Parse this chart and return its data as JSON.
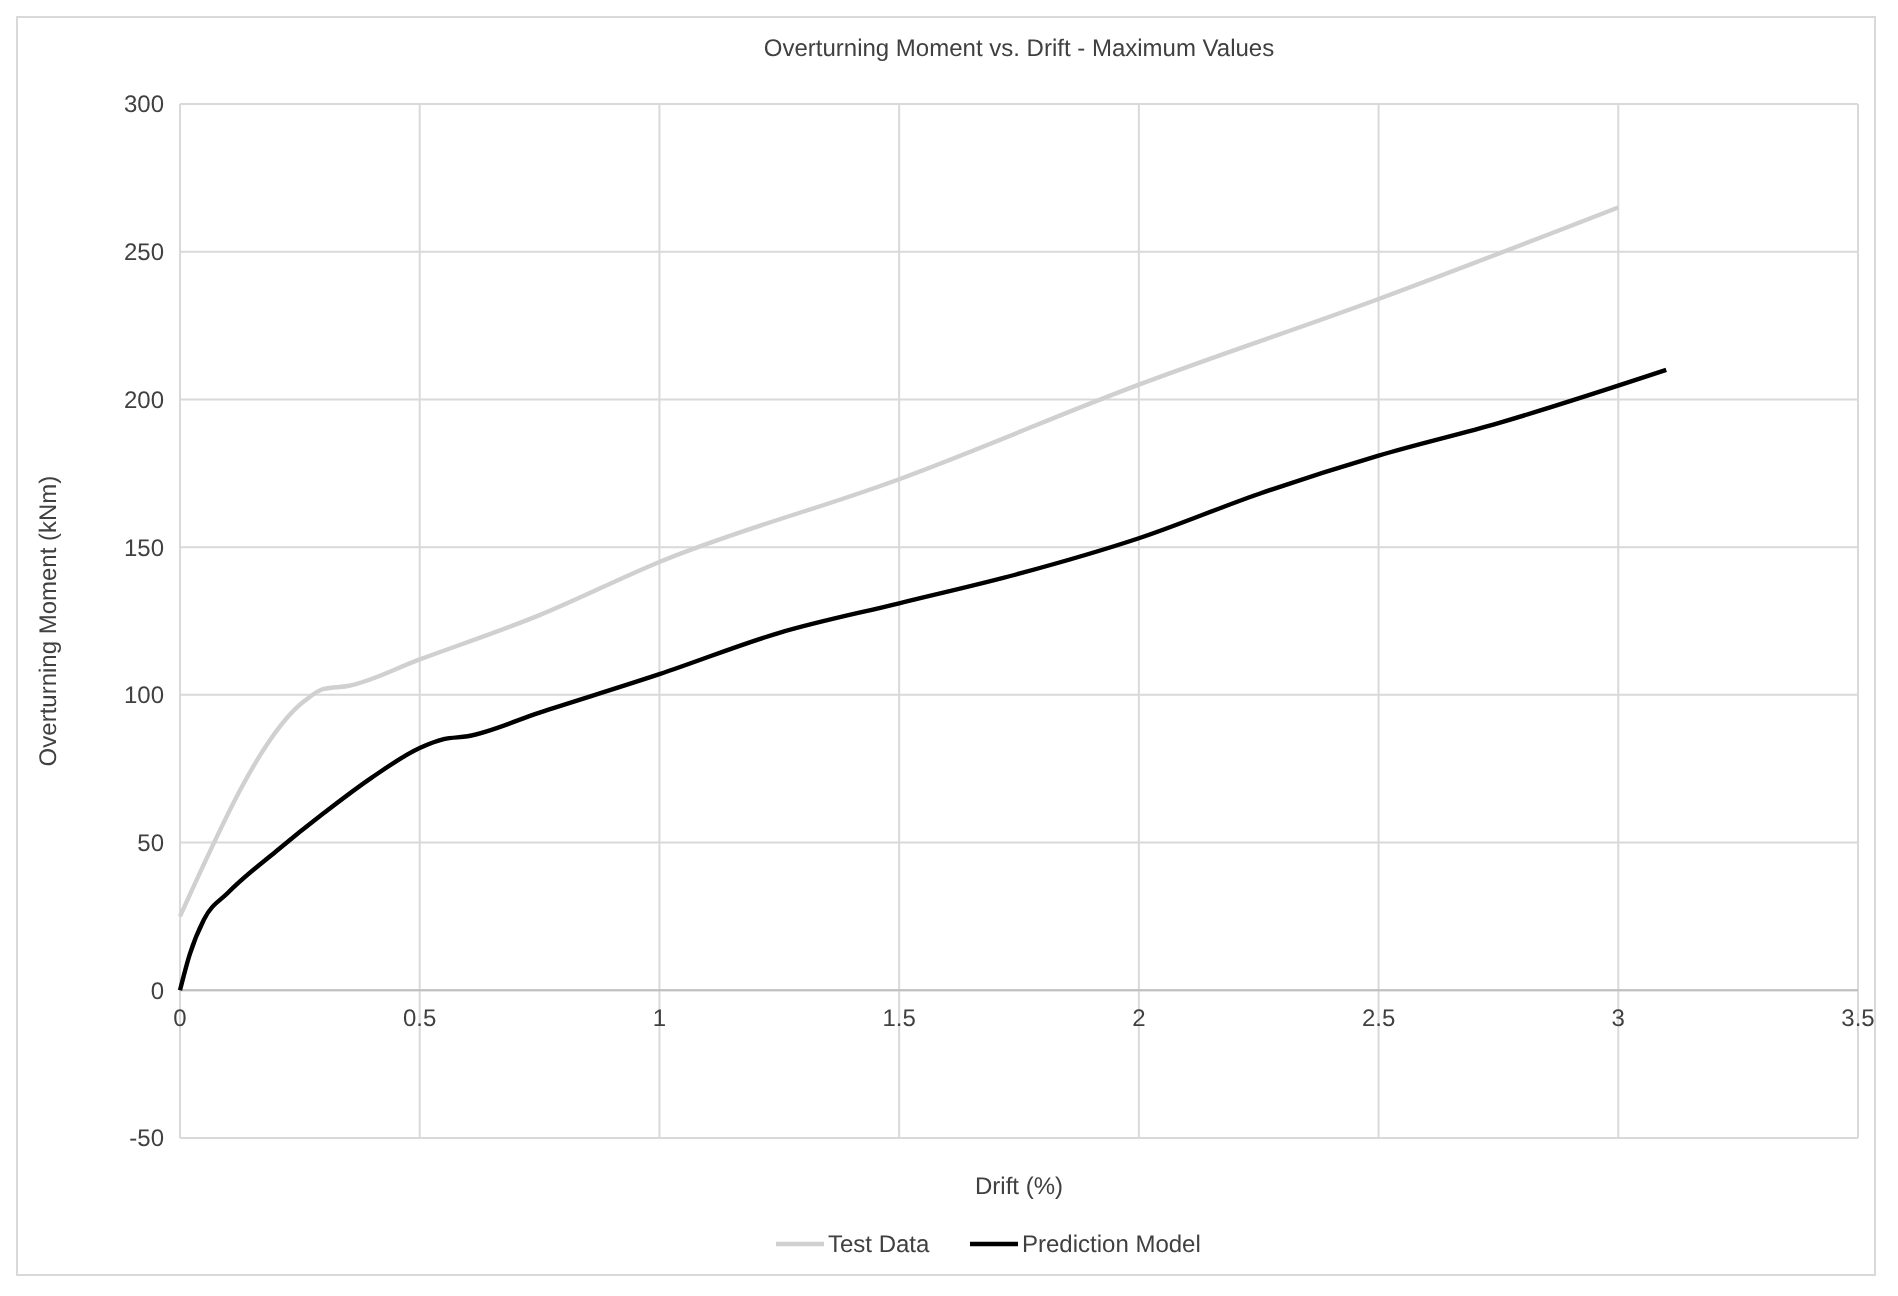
{
  "chart_data": {
    "type": "line",
    "title": "Overturning Moment vs. Drift - Maximum Values",
    "xlabel": "Drift (%)",
    "ylabel": "Overturning Moment (kNm)",
    "xlim": [
      0,
      3.5
    ],
    "xticks": [
      0,
      0.5,
      1,
      1.5,
      2,
      2.5,
      3,
      3.5
    ],
    "ylim": [
      -50,
      300
    ],
    "yticks": [
      -50,
      0,
      50,
      100,
      150,
      200,
      250,
      300
    ],
    "grid": true,
    "legend": "bottom",
    "line_style": "solid",
    "series": [
      {
        "name": "Test Data",
        "color": "#d0d0d0",
        "x": [
          0,
          0.26,
          0.3,
          0.35,
          0.5,
          0.75,
          1,
          1.5,
          2,
          2.5,
          3
        ],
        "values": [
          25,
          98,
          102,
          103,
          112,
          127,
          145,
          173,
          205,
          234,
          265
        ]
      },
      {
        "name": "Prediction Model",
        "color": "#000000",
        "x": [
          0,
          0.02,
          0.05,
          0.1,
          0.2,
          0.3,
          0.4,
          0.5,
          0.55,
          0.6,
          0.75,
          1,
          1.25,
          1.5,
          1.75,
          2,
          2.25,
          2.5,
          2.75,
          3.1
        ],
        "values": [
          0,
          12,
          24,
          33,
          47,
          60,
          72,
          82,
          85,
          86,
          94,
          107,
          121,
          131,
          141,
          153,
          168,
          181,
          192,
          210
        ]
      }
    ]
  }
}
